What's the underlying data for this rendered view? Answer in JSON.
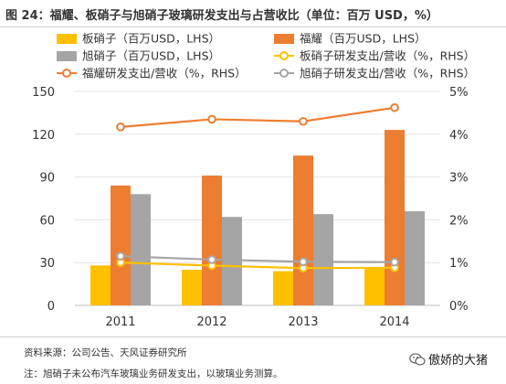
{
  "header": {
    "title": "图 24：福耀、板硝子与旭硝子玻璃研发支出与占营收比（单位：百万 USD，%）"
  },
  "footer": {
    "source": "资料来源：公司公告、天风证券研究所",
    "note": "注：旭硝子未公布汽车玻璃业务研发支出，以玻璃业务测算。",
    "brand": "傲娇的大猪"
  },
  "colors": {
    "nsg_bar": "#FFC000",
    "fuyao_bar": "#ED7D31",
    "agc_bar": "#A5A5A5",
    "nsg_line": "#FFC000",
    "fuyao_line": "#ED7D31",
    "agc_line": "#A5A5A5",
    "axis_text": "#333333"
  },
  "chart_data": {
    "type": "bar+line",
    "categories": [
      "2011",
      "2012",
      "2013",
      "2014"
    ],
    "left_axis": {
      "ylim": [
        0,
        150
      ],
      "ticks": [
        "0",
        "30",
        "60",
        "90",
        "120",
        "150"
      ]
    },
    "right_axis": {
      "ylim": [
        0,
        5
      ],
      "ticks": [
        "0%",
        "1%",
        "2%",
        "3%",
        "4%",
        "5%"
      ]
    },
    "bars": [
      {
        "name": "板硝子（百万USD，LHS）",
        "key": "nsg",
        "values": [
          28,
          25,
          24,
          26
        ]
      },
      {
        "name": "福耀（百万USD，LHS）",
        "key": "fuyao",
        "values": [
          84,
          91,
          105,
          123
        ]
      },
      {
        "name": "旭硝子（百万USD，LHS）",
        "key": "agc",
        "values": [
          78,
          62,
          64,
          66
        ]
      }
    ],
    "lines": [
      {
        "name": "板硝子研发支出/营收（%，RHS）",
        "key": "nsg",
        "values": [
          1.0,
          0.93,
          0.87,
          0.88
        ]
      },
      {
        "name": "福耀研发支出/营收（%，RHS）",
        "key": "fuyao",
        "values": [
          4.17,
          4.35,
          4.3,
          4.62
        ]
      },
      {
        "name": "旭硝子研发支出/营收（%，RHS）",
        "key": "agc",
        "values": [
          1.15,
          1.07,
          1.02,
          1.01
        ]
      }
    ],
    "legend": [
      {
        "label": "板硝子（百万USD，LHS）",
        "kind": "bar",
        "key": "nsg"
      },
      {
        "label": "福耀（百万USD，LHS）",
        "kind": "bar",
        "key": "fuyao"
      },
      {
        "label": "旭硝子（百万USD，LHS）",
        "kind": "bar",
        "key": "agc"
      },
      {
        "label": "板硝子研发支出/营收（%，RHS）",
        "kind": "line",
        "key": "nsg"
      },
      {
        "label": "福耀研发支出/营收（%，RHS）",
        "kind": "line",
        "key": "fuyao"
      },
      {
        "label": "旭硝子研发支出/营收（%，RHS）",
        "kind": "line",
        "key": "agc"
      }
    ],
    "legend_position": "top",
    "grid": true
  }
}
